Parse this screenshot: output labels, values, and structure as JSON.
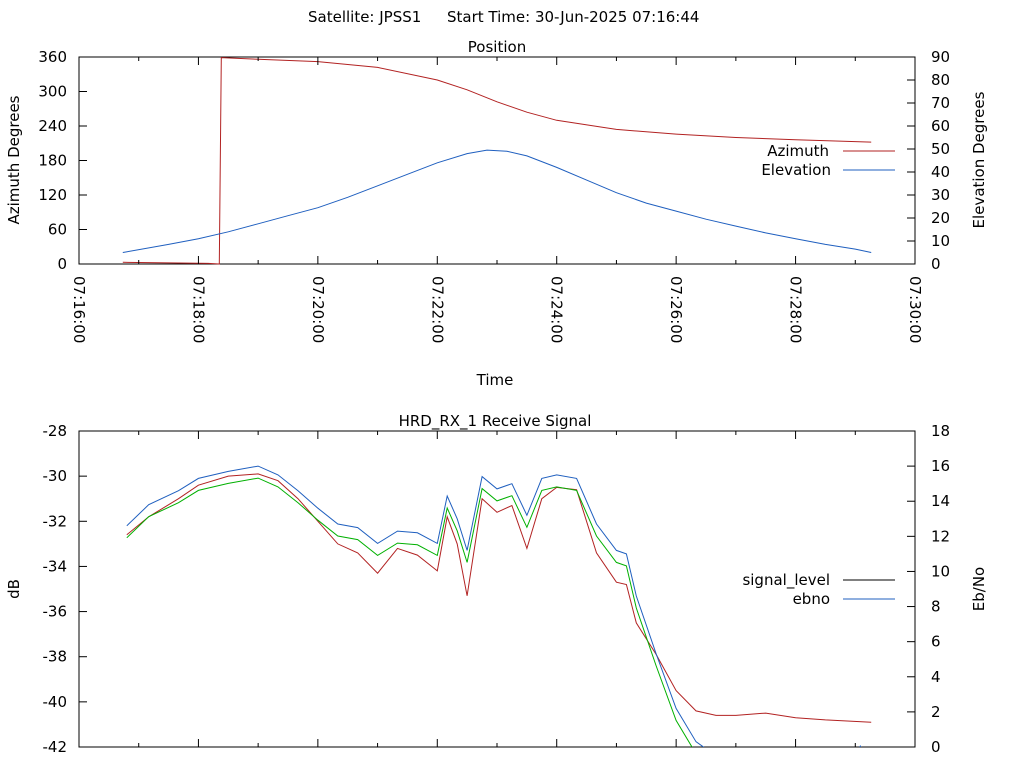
{
  "header": {
    "satellite_label": "Satellite: JPSS1",
    "start_time_label": "Start Time: 30-Jun-2025 07:16:44"
  },
  "colors": {
    "azimuth": "#b22222",
    "elevation": "#1f5fbf",
    "signal_level": "#b22222",
    "ebno": "#1f5fbf",
    "green_trace": "#00b000",
    "axes": "#000000"
  },
  "chart_data": [
    {
      "type": "line",
      "title": "Position",
      "xlabel": "Time",
      "ylabel": "Azimuth Degrees",
      "y2label": "Elevation Degrees",
      "xlim": [
        "07:16:00",
        "07:30:00"
      ],
      "ylim": [
        0,
        360
      ],
      "y2lim": [
        0,
        90
      ],
      "x_ticks": [
        "07:16:00",
        "07:18:00",
        "07:20:00",
        "07:22:00",
        "07:24:00",
        "07:26:00",
        "07:28:00",
        "07:30:00"
      ],
      "y_ticks": [
        "0",
        "60",
        "120",
        "180",
        "240",
        "300",
        "360"
      ],
      "y2_ticks": [
        "0",
        "10",
        "20",
        "30",
        "40",
        "50",
        "60",
        "70",
        "80",
        "90"
      ],
      "legend_position": "right",
      "series": [
        {
          "name": "Azimuth",
          "axis": "left",
          "color_key": "azimuth",
          "points": [
            [
              "07:16:44",
              3
            ],
            [
              "07:17:30",
              2
            ],
            [
              "07:18:10",
              1
            ],
            [
              "07:18:21",
              0
            ],
            [
              "07:18:22",
              180
            ],
            [
              "07:18:23",
              359
            ],
            [
              "07:19:00",
              356
            ],
            [
              "07:20:00",
              352
            ],
            [
              "07:21:00",
              342
            ],
            [
              "07:22:00",
              320
            ],
            [
              "07:22:30",
              303
            ],
            [
              "07:23:00",
              282
            ],
            [
              "07:23:30",
              264
            ],
            [
              "07:24:00",
              250
            ],
            [
              "07:25:00",
              234
            ],
            [
              "07:26:00",
              226
            ],
            [
              "07:27:00",
              220
            ],
            [
              "07:28:00",
              216
            ],
            [
              "07:29:16",
              212
            ]
          ]
        },
        {
          "name": "Elevation",
          "axis": "right",
          "color_key": "elevation",
          "points": [
            [
              "07:16:44",
              5
            ],
            [
              "07:17:30",
              8.5
            ],
            [
              "07:18:00",
              11
            ],
            [
              "07:18:30",
              14
            ],
            [
              "07:19:00",
              17.5
            ],
            [
              "07:19:30",
              21
            ],
            [
              "07:20:00",
              24.5
            ],
            [
              "07:20:30",
              29
            ],
            [
              "07:21:00",
              34
            ],
            [
              "07:21:30",
              39
            ],
            [
              "07:22:00",
              44
            ],
            [
              "07:22:30",
              48
            ],
            [
              "07:22:50",
              49.5
            ],
            [
              "07:23:10",
              49
            ],
            [
              "07:23:30",
              47
            ],
            [
              "07:24:00",
              42
            ],
            [
              "07:24:30",
              36.5
            ],
            [
              "07:25:00",
              31
            ],
            [
              "07:25:30",
              26.5
            ],
            [
              "07:26:00",
              23
            ],
            [
              "07:26:30",
              19.5
            ],
            [
              "07:27:00",
              16.5
            ],
            [
              "07:27:30",
              13.5
            ],
            [
              "07:28:00",
              11
            ],
            [
              "07:28:30",
              8.5
            ],
            [
              "07:29:00",
              6.5
            ],
            [
              "07:29:16",
              5
            ]
          ]
        }
      ]
    },
    {
      "type": "line",
      "title": "HRD_RX_1 Receive Signal",
      "ylabel": "dB",
      "y2label": "Eb/No",
      "xlim": [
        "07:16:00",
        "07:30:00"
      ],
      "ylim": [
        -42,
        -28
      ],
      "y2lim": [
        0,
        18
      ],
      "y_ticks": [
        "-42",
        "-40",
        "-38",
        "-36",
        "-34",
        "-32",
        "-30",
        "-28"
      ],
      "y2_ticks": [
        "0",
        "2",
        "4",
        "6",
        "8",
        "10",
        "12",
        "14",
        "16",
        "18"
      ],
      "legend_position": "right",
      "series": [
        {
          "name": "signal_level",
          "axis": "left",
          "color_key": "signal_level",
          "points": [
            [
              "07:16:48",
              -32.6
            ],
            [
              "07:17:10",
              -31.8
            ],
            [
              "07:17:40",
              -31.0
            ],
            [
              "07:18:00",
              -30.4
            ],
            [
              "07:18:30",
              -30.0
            ],
            [
              "07:19:00",
              -29.9
            ],
            [
              "07:19:20",
              -30.2
            ],
            [
              "07:19:40",
              -31.0
            ],
            [
              "07:20:00",
              -32.0
            ],
            [
              "07:20:20",
              -33.0
            ],
            [
              "07:20:40",
              -33.4
            ],
            [
              "07:21:00",
              -34.3
            ],
            [
              "07:21:20",
              -33.2
            ],
            [
              "07:21:40",
              -33.5
            ],
            [
              "07:22:00",
              -34.2
            ],
            [
              "07:22:10",
              -31.8
            ],
            [
              "07:22:20",
              -33.0
            ],
            [
              "07:22:30",
              -35.3
            ],
            [
              "07:22:45",
              -31.0
            ],
            [
              "07:23:00",
              -31.6
            ],
            [
              "07:23:15",
              -31.3
            ],
            [
              "07:23:30",
              -33.2
            ],
            [
              "07:23:45",
              -31.0
            ],
            [
              "07:24:00",
              -30.5
            ],
            [
              "07:24:20",
              -30.6
            ],
            [
              "07:24:40",
              -33.4
            ],
            [
              "07:25:00",
              -34.7
            ],
            [
              "07:25:10",
              -34.8
            ],
            [
              "07:25:20",
              -36.5
            ],
            [
              "07:25:40",
              -37.9
            ],
            [
              "07:26:00",
              -39.5
            ],
            [
              "07:26:20",
              -40.4
            ],
            [
              "07:26:40",
              -40.6
            ],
            [
              "07:27:00",
              -40.6
            ],
            [
              "07:27:30",
              -40.5
            ],
            [
              "07:28:00",
              -40.7
            ],
            [
              "07:28:30",
              -40.8
            ],
            [
              "07:29:16",
              -40.9
            ]
          ]
        },
        {
          "name": "ebno",
          "axis": "right",
          "color_key": "ebno",
          "points": [
            [
              "07:16:48",
              12.6
            ],
            [
              "07:17:10",
              13.8
            ],
            [
              "07:17:40",
              14.6
            ],
            [
              "07:18:00",
              15.3
            ],
            [
              "07:18:30",
              15.7
            ],
            [
              "07:19:00",
              16.0
            ],
            [
              "07:19:20",
              15.5
            ],
            [
              "07:19:40",
              14.6
            ],
            [
              "07:20:00",
              13.6
            ],
            [
              "07:20:20",
              12.7
            ],
            [
              "07:20:40",
              12.5
            ],
            [
              "07:21:00",
              11.6
            ],
            [
              "07:21:20",
              12.3
            ],
            [
              "07:21:40",
              12.2
            ],
            [
              "07:22:00",
              11.6
            ],
            [
              "07:22:10",
              14.3
            ],
            [
              "07:22:20",
              13.0
            ],
            [
              "07:22:30",
              11.2
            ],
            [
              "07:22:45",
              15.4
            ],
            [
              "07:23:00",
              14.7
            ],
            [
              "07:23:15",
              15.0
            ],
            [
              "07:23:30",
              13.2
            ],
            [
              "07:23:45",
              15.3
            ],
            [
              "07:24:00",
              15.5
            ],
            [
              "07:24:20",
              15.3
            ],
            [
              "07:24:40",
              12.7
            ],
            [
              "07:25:00",
              11.2
            ],
            [
              "07:25:10",
              11.0
            ],
            [
              "07:25:20",
              8.6
            ],
            [
              "07:25:40",
              5.3
            ],
            [
              "07:26:00",
              2.2
            ],
            [
              "07:26:20",
              0.3
            ],
            [
              "07:26:40",
              -0.5
            ],
            [
              "07:27:00",
              -1.0
            ],
            [
              "07:28:00",
              -1.0
            ],
            [
              "07:29:00",
              -0.5
            ],
            [
              "07:29:05",
              0.05
            ],
            [
              "07:29:10",
              -0.5
            ]
          ]
        }
      ]
    }
  ]
}
